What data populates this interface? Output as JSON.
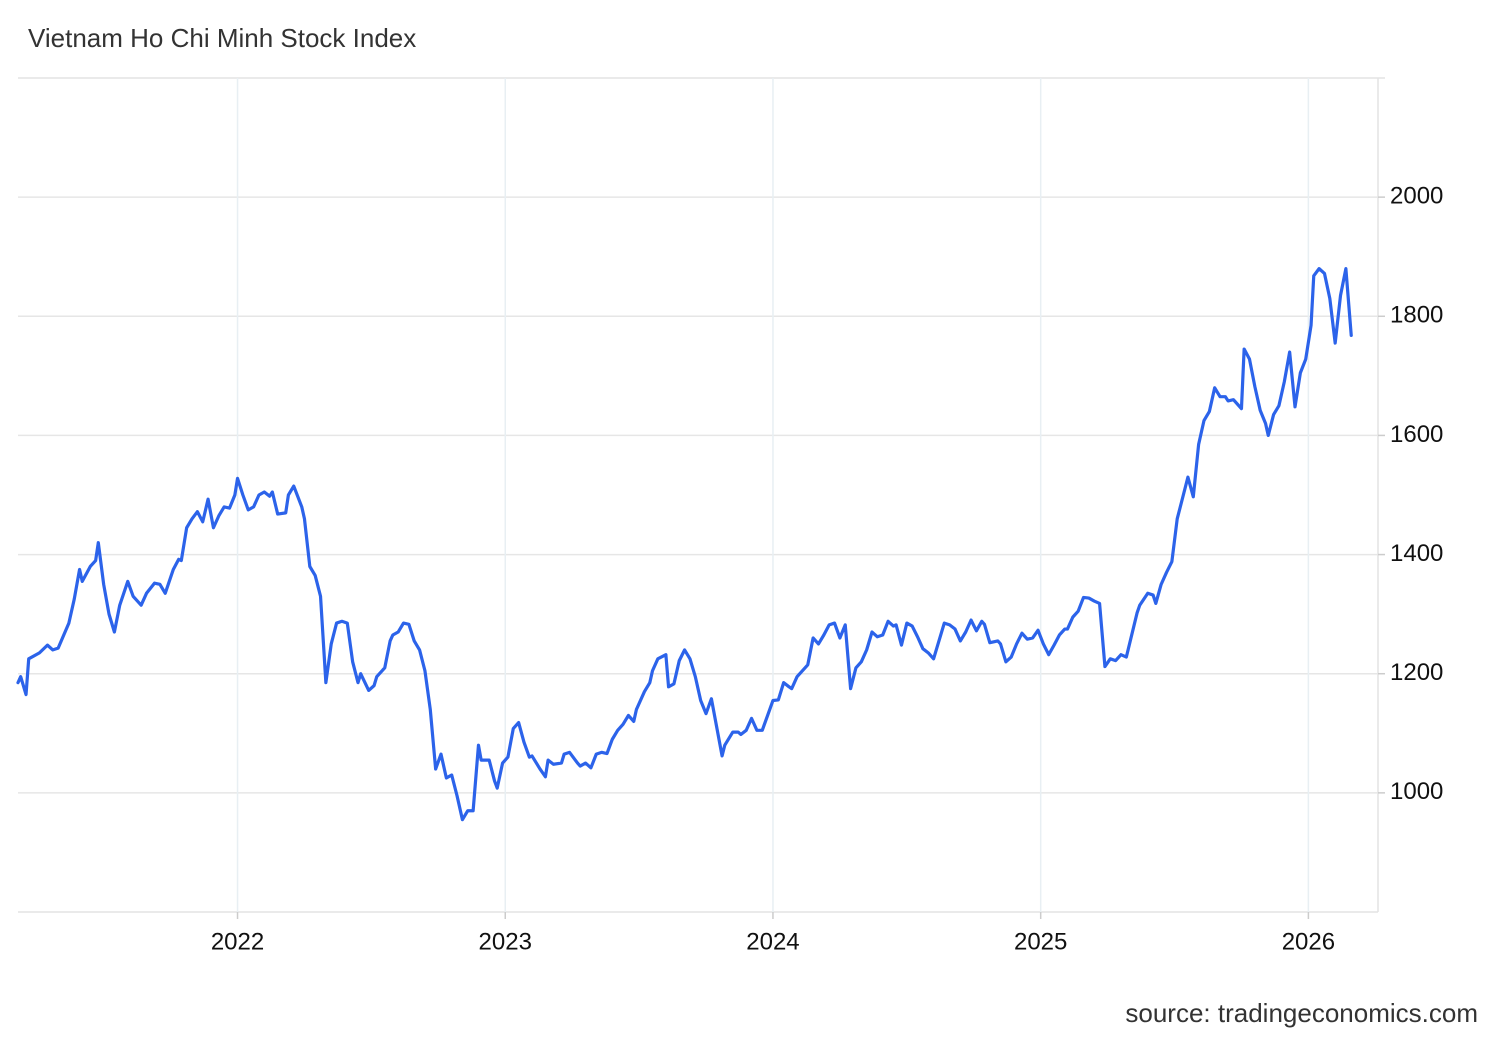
{
  "chart_data": {
    "type": "line",
    "title": "Vietnam Ho Chi Minh Stock Index",
    "source": "source: tradingeconomics.com",
    "color": "#2c63ea",
    "grid": true,
    "xlim": [
      2021.18,
      2026.26
    ],
    "xticks": [
      2022,
      2023,
      2024,
      2025,
      2026
    ],
    "ylim": [
      800,
      2200
    ],
    "yticks": [
      1000,
      1200,
      1400,
      1600,
      1800,
      2000
    ],
    "x": [
      2021.18,
      2021.19,
      2021.21,
      2021.22,
      2021.26,
      2021.29,
      2021.31,
      2021.33,
      2021.37,
      2021.39,
      2021.41,
      2021.42,
      2021.45,
      2021.47,
      2021.48,
      2021.5,
      2021.52,
      2021.54,
      2021.56,
      2021.59,
      2021.61,
      2021.64,
      2021.66,
      2021.69,
      2021.71,
      2021.73,
      2021.76,
      2021.78,
      2021.79,
      2021.81,
      2021.83,
      2021.85,
      2021.87,
      2021.89,
      2021.91,
      2021.93,
      2021.95,
      2021.97,
      2021.99,
      2022.0,
      2022.02,
      2022.04,
      2022.06,
      2022.08,
      2022.1,
      2022.12,
      2022.13,
      2022.15,
      2022.18,
      2022.19,
      2022.21,
      2022.24,
      2022.25,
      2022.27,
      2022.29,
      2022.31,
      2022.33,
      2022.35,
      2022.37,
      2022.39,
      2022.41,
      2022.43,
      2022.45,
      2022.46,
      2022.49,
      2022.51,
      2022.52,
      2022.55,
      2022.57,
      2022.58,
      2022.6,
      2022.62,
      2022.64,
      2022.66,
      2022.68,
      2022.7,
      2022.72,
      2022.74,
      2022.76,
      2022.78,
      2022.8,
      2022.82,
      2022.84,
      2022.86,
      2022.88,
      2022.9,
      2022.91,
      2022.94,
      2022.96,
      2022.97,
      2022.99,
      2023.01,
      2023.03,
      2023.05,
      2023.07,
      2023.09,
      2023.1,
      2023.13,
      2023.15,
      2023.16,
      2023.18,
      2023.21,
      2023.22,
      2023.24,
      2023.27,
      2023.28,
      2023.3,
      2023.32,
      2023.34,
      2023.36,
      2023.38,
      2023.4,
      2023.42,
      2023.44,
      2023.46,
      2023.48,
      2023.49,
      2023.52,
      2023.54,
      2023.55,
      2023.57,
      2023.6,
      2023.61,
      2023.63,
      2023.65,
      2023.67,
      2023.69,
      2023.71,
      2023.73,
      2023.75,
      2023.77,
      2023.79,
      2023.81,
      2023.82,
      2023.85,
      2023.87,
      2023.88,
      2023.9,
      2023.92,
      2023.94,
      2023.96,
      2023.98,
      2024.0,
      2024.02,
      2024.04,
      2024.06,
      2024.07,
      2024.09,
      2024.12,
      2024.13,
      2024.15,
      2024.17,
      2024.19,
      2024.21,
      2024.23,
      2024.25,
      2024.27,
      2024.29,
      2024.31,
      2024.33,
      2024.35,
      2024.37,
      2024.39,
      2024.41,
      2024.43,
      2024.45,
      2024.46,
      2024.48,
      2024.5,
      2024.52,
      2024.54,
      2024.56,
      2024.58,
      2024.6,
      2024.62,
      2024.64,
      2024.66,
      2024.68,
      2024.7,
      2024.72,
      2024.74,
      2024.76,
      2024.78,
      2024.79,
      2024.81,
      2024.84,
      2024.85,
      2024.87,
      2024.89,
      2024.91,
      2024.93,
      2024.95,
      2024.97,
      2024.99,
      2025.01,
      2025.03,
      2025.05,
      2025.07,
      2025.09,
      2025.1,
      2025.12,
      2025.14,
      2025.16,
      2025.18,
      2025.2,
      2025.22,
      2025.24,
      2025.26,
      2025.28,
      2025.3,
      2025.32,
      2025.34,
      2025.36,
      2025.37,
      2025.4,
      2025.42,
      2025.43,
      2025.45,
      2025.47,
      2025.49,
      2025.51,
      2025.53,
      2025.55,
      2025.57,
      2025.59,
      2025.61,
      2025.63,
      2025.65,
      2025.67,
      2025.69,
      2025.7,
      2025.72,
      2025.75,
      2025.76,
      2025.78,
      2025.8,
      2025.82,
      2025.84,
      2025.85,
      2025.87,
      2025.89,
      2025.91,
      2025.93,
      2025.95,
      2025.97,
      2025.99,
      2026.01,
      2026.02,
      2026.04,
      2026.06,
      2026.08,
      2026.1,
      2026.12,
      2026.14,
      2026.16
    ],
    "values": [
      1185,
      1195,
      1165,
      1225,
      1235,
      1248,
      1240,
      1243,
      1285,
      1325,
      1375,
      1355,
      1380,
      1390,
      1420,
      1350,
      1300,
      1270,
      1315,
      1355,
      1330,
      1315,
      1335,
      1352,
      1350,
      1335,
      1375,
      1392,
      1390,
      1445,
      1460,
      1472,
      1455,
      1493,
      1445,
      1465,
      1480,
      1478,
      1500,
      1528,
      1500,
      1475,
      1480,
      1500,
      1505,
      1498,
      1505,
      1468,
      1470,
      1500,
      1515,
      1480,
      1460,
      1380,
      1365,
      1330,
      1185,
      1250,
      1285,
      1288,
      1285,
      1220,
      1185,
      1200,
      1172,
      1180,
      1195,
      1210,
      1255,
      1265,
      1270,
      1285,
      1283,
      1255,
      1240,
      1205,
      1140,
      1040,
      1065,
      1025,
      1030,
      995,
      955,
      970,
      970,
      1080,
      1055,
      1055,
      1020,
      1008,
      1050,
      1060,
      1108,
      1118,
      1085,
      1060,
      1062,
      1040,
      1027,
      1055,
      1048,
      1050,
      1065,
      1068,
      1050,
      1045,
      1050,
      1042,
      1065,
      1068,
      1066,
      1090,
      1105,
      1115,
      1130,
      1120,
      1140,
      1170,
      1185,
      1205,
      1225,
      1232,
      1178,
      1183,
      1222,
      1240,
      1225,
      1195,
      1155,
      1133,
      1158,
      1110,
      1062,
      1080,
      1102,
      1102,
      1098,
      1105,
      1125,
      1105,
      1105,
      1130,
      1155,
      1156,
      1185,
      1178,
      1175,
      1195,
      1210,
      1215,
      1260,
      1250,
      1265,
      1282,
      1285,
      1260,
      1282,
      1175,
      1210,
      1220,
      1240,
      1270,
      1262,
      1265,
      1288,
      1280,
      1282,
      1248,
      1285,
      1280,
      1262,
      1242,
      1235,
      1225,
      1255,
      1285,
      1282,
      1275,
      1255,
      1270,
      1290,
      1272,
      1288,
      1283,
      1252,
      1255,
      1250,
      1220,
      1228,
      1250,
      1268,
      1258,
      1260,
      1273,
      1250,
      1232,
      1248,
      1265,
      1275,
      1275,
      1295,
      1305,
      1328,
      1327,
      1322,
      1318,
      1212,
      1225,
      1222,
      1232,
      1228,
      1265,
      1302,
      1315,
      1335,
      1332,
      1318,
      1350,
      1370,
      1388,
      1460,
      1495,
      1530,
      1497,
      1585,
      1625,
      1640,
      1680,
      1665,
      1665,
      1658,
      1660,
      1645,
      1745,
      1728,
      1682,
      1642,
      1620,
      1600,
      1635,
      1650,
      1690,
      1740,
      1648,
      1705,
      1728,
      1785,
      1868,
      1880,
      1872,
      1830,
      1755,
      1835,
      1880,
      1768
    ]
  }
}
